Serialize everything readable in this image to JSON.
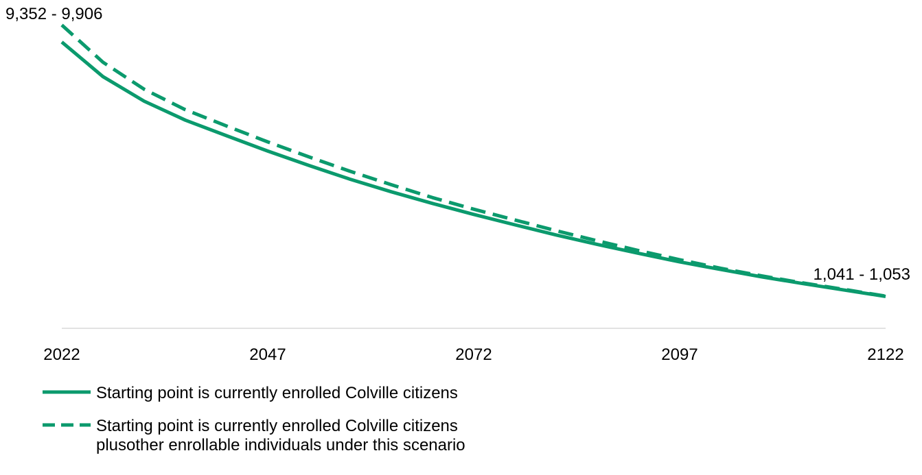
{
  "chart_data": {
    "type": "line",
    "x": [
      2022,
      2027,
      2032,
      2037,
      2042,
      2047,
      2052,
      2057,
      2062,
      2067,
      2072,
      2077,
      2082,
      2087,
      2092,
      2097,
      2102,
      2107,
      2112,
      2117,
      2122
    ],
    "x_ticks": [
      "2022",
      "2047",
      "2072",
      "2097",
      "2122"
    ],
    "xlim": [
      2022,
      2122
    ],
    "ylim": [
      0,
      10500
    ],
    "y_axis_visible": false,
    "grid": false,
    "legend_position": "bottom-left",
    "color": "#0b9a6d",
    "series": [
      {
        "name": "Starting point is currently enrolled Colville citizens",
        "style": "solid",
        "values": [
          9352,
          8220,
          7420,
          6800,
          6290,
          5790,
          5320,
          4870,
          4460,
          4080,
          3720,
          3380,
          3050,
          2740,
          2450,
          2170,
          1920,
          1680,
          1460,
          1250,
          1041
        ]
      },
      {
        "name": "Starting point is currently enrolled Colville citizens\nplusother enrollable individuals under this scenario",
        "style": "dashed",
        "values": [
          9906,
          8690,
          7810,
          7140,
          6610,
          6090,
          5600,
          5130,
          4690,
          4270,
          3890,
          3540,
          3190,
          2860,
          2540,
          2240,
          1960,
          1710,
          1480,
          1270,
          1053
        ]
      }
    ],
    "annotations": {
      "start": "9,352 - 9,906",
      "end": "1,041 - 1,053"
    }
  }
}
